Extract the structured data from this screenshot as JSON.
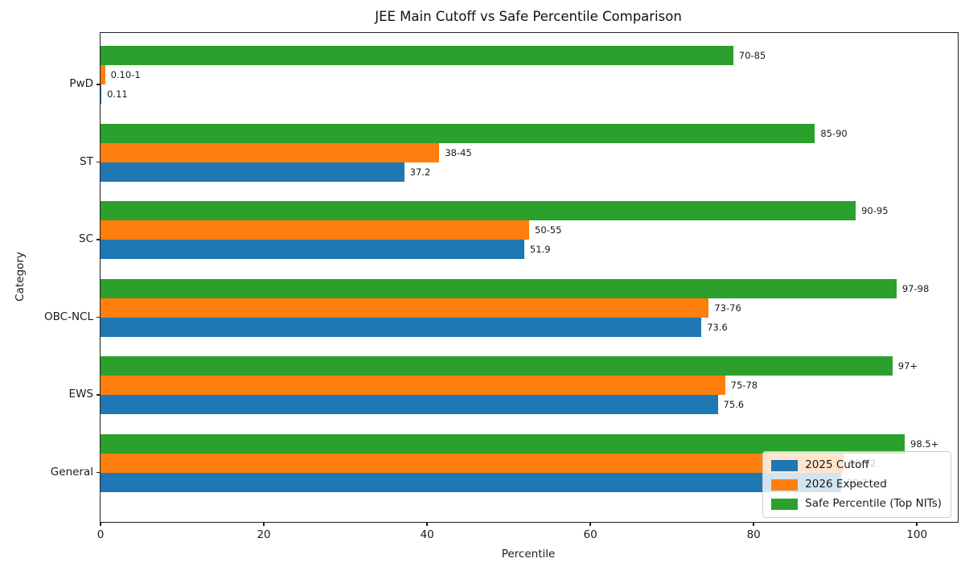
{
  "chart_data": {
    "type": "bar",
    "orientation": "horizontal",
    "title": "JEE Main Cutoff vs Safe Percentile Comparison",
    "xlabel": "Percentile",
    "ylabel": "Category",
    "xlim": [
      0,
      105
    ],
    "xticks": [
      0,
      20,
      40,
      60,
      80,
      100
    ],
    "grid": false,
    "categories_top_to_bottom": [
      "PwD",
      "ST",
      "SC",
      "OBC-NCL",
      "EWS",
      "General"
    ],
    "series": [
      {
        "name": "Safe Percentile (Top NITs)",
        "color": "#2ca02c",
        "values": [
          77.5,
          87.5,
          92.5,
          97.5,
          97.0,
          98.5
        ],
        "bar_labels": [
          "70-85",
          "85-90",
          "90-95",
          "97-98",
          "97+",
          "98.5+"
        ]
      },
      {
        "name": "2026 Expected",
        "color": "#ff7f0e",
        "values": [
          0.55,
          41.5,
          52.5,
          74.5,
          76.5,
          91.0
        ],
        "bar_labels": [
          "0.10-1",
          "38-45",
          "50-55",
          "73-76",
          "75-78",
          "90-92"
        ]
      },
      {
        "name": "2025 Cutoff",
        "color": "#1f77b4",
        "values": [
          0.11,
          37.2,
          51.9,
          73.6,
          75.6,
          90.7
        ],
        "bar_labels": [
          "0.11",
          "37.2",
          "51.9",
          "73.6",
          "75.6",
          "90.7"
        ]
      }
    ],
    "legend": {
      "position": "lower right",
      "entries": [
        {
          "label": "2025 Cutoff",
          "color": "#1f77b4"
        },
        {
          "label": "2026 Expected",
          "color": "#ff7f0e"
        },
        {
          "label": "Safe Percentile (Top NITs)",
          "color": "#2ca02c"
        }
      ]
    }
  }
}
